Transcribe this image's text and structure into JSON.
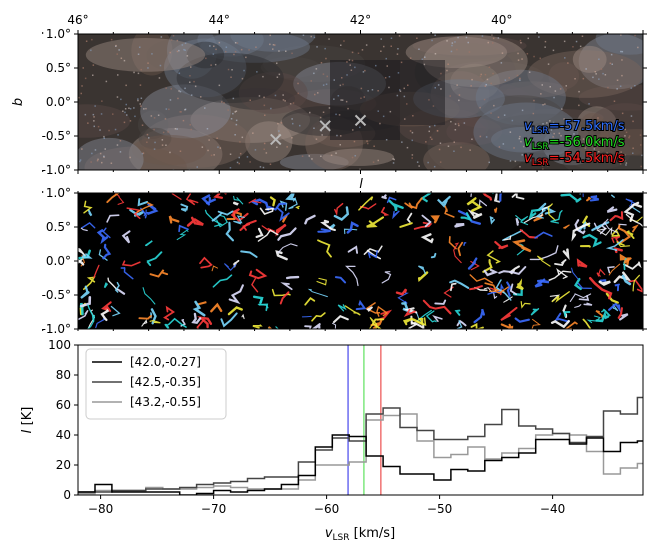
{
  "panels": {
    "rgb": {
      "top_ticks": [
        "46°",
        "44°",
        "42°",
        "40°"
      ],
      "top_tick_values": [
        46,
        44,
        42,
        40
      ],
      "y_ticks": [
        "1.0°",
        "0.5°",
        "0.0°",
        "-0.5°",
        "-1.0°"
      ],
      "y_tick_values": [
        1.0,
        0.5,
        0.0,
        -0.5,
        -1.0
      ],
      "ylabel": "b",
      "xlabel_below": "l",
      "l_range": [
        46.0,
        38.0
      ],
      "markers": [
        {
          "l": 42.0,
          "b": -0.27
        },
        {
          "l": 42.5,
          "b": -0.35
        },
        {
          "l": 43.2,
          "b": -0.55
        }
      ],
      "legend": [
        {
          "label": "=-57.5km/s",
          "color": "#2f6fff"
        },
        {
          "label": "=-56.0km/s",
          "color": "#22dd22"
        },
        {
          "label": "=-54.5km/s",
          "color": "#ff2020"
        }
      ],
      "legend_var": "v",
      "legend_sub": "LSR"
    },
    "filament": {
      "y_ticks": [
        "1.0°",
        "0.5°",
        "0.0°",
        "-0.5°",
        "-1.0°"
      ],
      "y_tick_values": [
        1.0,
        0.5,
        0.0,
        -0.5,
        -1.0
      ]
    }
  },
  "chart_data": {
    "type": "line",
    "xlabel_var": "v",
    "xlabel_sub": "LSR",
    "xlabel_unit": " [km/s]",
    "ylabel_var": "I",
    "ylabel_unit": " [K]",
    "xlim": [
      -82,
      -32
    ],
    "ylim": [
      0,
      100
    ],
    "x_ticks": [
      -80,
      -70,
      -60,
      -50,
      -40
    ],
    "x_tick_labels": [
      "−80",
      "−70",
      "−60",
      "−50",
      "−40"
    ],
    "y_ticks": [
      0,
      20,
      40,
      60,
      80,
      100
    ],
    "y_tick_labels": [
      "0",
      "20",
      "40",
      "60",
      "80",
      "100"
    ],
    "bin_edges": [
      -82,
      -80.5,
      -79,
      -77.5,
      -76,
      -74.5,
      -73,
      -71.5,
      -70,
      -68.5,
      -67,
      -65.5,
      -64,
      -62.5,
      -61,
      -59.5,
      -58,
      -56.5,
      -55,
      -53.5,
      -52,
      -50.5,
      -49,
      -47.5,
      -46,
      -44.5,
      -43,
      -41.5,
      -40,
      -38.5,
      -37,
      -35.5,
      -34,
      -32.5,
      -32
    ],
    "vlines": [
      {
        "x": -58.1,
        "color": "#6b6bf0"
      },
      {
        "x": -56.7,
        "color": "#7ee87e"
      },
      {
        "x": -55.2,
        "color": "#f07272"
      }
    ],
    "series": [
      {
        "name": "[42.0,-0.27]",
        "color": "#000000",
        "values": [
          2,
          7,
          2,
          2,
          2,
          2,
          0,
          1,
          3,
          2,
          3,
          4,
          7,
          13,
          32,
          40,
          39,
          26,
          19,
          14,
          14,
          10,
          17,
          16,
          23,
          25,
          28,
          37,
          37,
          34,
          38,
          29,
          35,
          36
        ]
      },
      {
        "name": "[42.5,-0.35]",
        "color": "#444444",
        "values": [
          2,
          2,
          3,
          3,
          4,
          4,
          5,
          7,
          8,
          9,
          11,
          12,
          12,
          22,
          30,
          38,
          36,
          54,
          58,
          45,
          43,
          37,
          37,
          39,
          47,
          57,
          46,
          44,
          41,
          35,
          39,
          56,
          54,
          65
        ]
      },
      {
        "name": "[43.2,-0.55]",
        "color": "#999999",
        "values": [
          1,
          3,
          3,
          3,
          5,
          4,
          4,
          5,
          6,
          5,
          4,
          4,
          4,
          10,
          20,
          20,
          22,
          50,
          53,
          54,
          36,
          25,
          27,
          32,
          24,
          28,
          31,
          40,
          41,
          40,
          29,
          14,
          18,
          21
        ]
      }
    ]
  }
}
